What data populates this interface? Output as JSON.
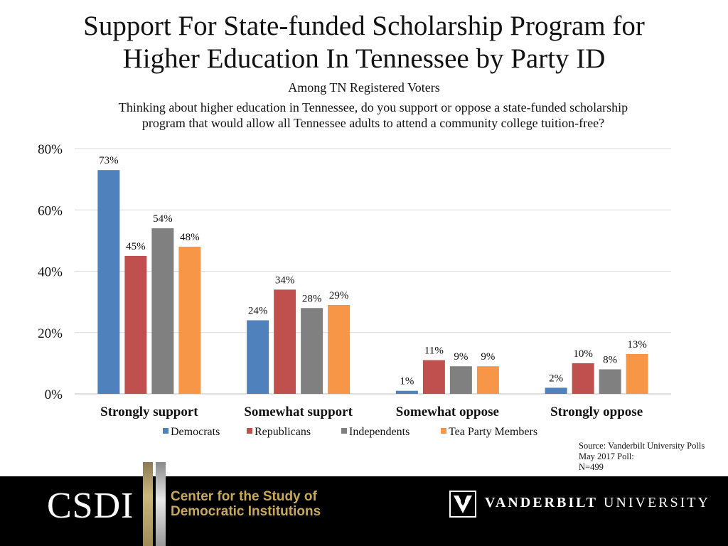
{
  "header": {
    "title_line1": "Support For State-funded Scholarship Program for",
    "title_line2": "Higher Education In Tennessee by Party ID",
    "subtitle": "Among TN Registered Voters",
    "question_line1": "Thinking about higher education in Tennessee, do you support or oppose a state-funded scholarship",
    "question_line2": "program that would allow all Tennessee adults to attend a community college tuition-free?"
  },
  "chart_data": {
    "type": "bar",
    "categories": [
      "Strongly support",
      "Somewhat support",
      "Somewhat oppose",
      "Strongly oppose"
    ],
    "series": [
      {
        "name": "Democrats",
        "values": [
          73,
          24,
          1,
          2
        ],
        "color": "#4f81bd"
      },
      {
        "name": "Republicans",
        "values": [
          45,
          34,
          11,
          10
        ],
        "color": "#c0504d"
      },
      {
        "name": "Independents",
        "values": [
          54,
          28,
          9,
          8
        ],
        "color": "#808080"
      },
      {
        "name": "Tea Party Members",
        "values": [
          48,
          29,
          9,
          13
        ],
        "color": "#f79646"
      }
    ],
    "yticks": [
      "0%",
      "20%",
      "40%",
      "60%",
      "80%"
    ],
    "ylim": [
      0,
      80
    ],
    "value_suffix": "%",
    "grid": true,
    "legend_position": "bottom"
  },
  "source": {
    "line1": "Source: Vanderbilt University Polls",
    "line2": "May 2017 Poll:",
    "line3": "N=499"
  },
  "footer": {
    "csdi_acronym": "CSDI",
    "csdi_line1": "Center for the Study of",
    "csdi_line2": "Democratic Institutions",
    "vu_bold": "VANDERBILT",
    "vu_light": "UNIVERSITY"
  }
}
